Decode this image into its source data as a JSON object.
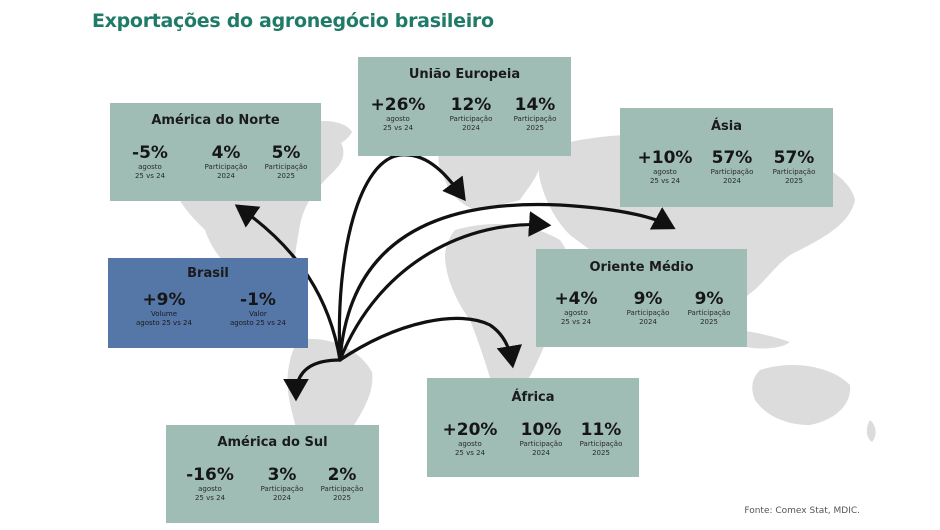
{
  "title": "Exportações do agronegócio brasileiro",
  "source": "Fonte: Comex Stat, MDIC.",
  "colors": {
    "title": "#1f7a68",
    "box": "#9fbdb5",
    "brasil_box": "#5477a8",
    "map": "#d9d9d9",
    "arrow": "#111111"
  },
  "regions": {
    "ue": {
      "name": "União Europeia",
      "stats": [
        {
          "value": "+26%",
          "cap1": "agosto",
          "cap2": "25 vs 24"
        },
        {
          "value": "12%",
          "cap1": "Participação",
          "cap2": "2024"
        },
        {
          "value": "14%",
          "cap1": "Participação",
          "cap2": "2025"
        }
      ]
    },
    "na": {
      "name": "América do Norte",
      "stats": [
        {
          "value": "-5%",
          "cap1": "agosto",
          "cap2": "25 vs 24"
        },
        {
          "value": "4%",
          "cap1": "Participação",
          "cap2": "2024"
        },
        {
          "value": "5%",
          "cap1": "Participação",
          "cap2": "2025"
        }
      ]
    },
    "asia": {
      "name": "Ásia",
      "stats": [
        {
          "value": "+10%",
          "cap1": "agosto",
          "cap2": "25 vs 24"
        },
        {
          "value": "57%",
          "cap1": "Participação",
          "cap2": "2024"
        },
        {
          "value": "57%",
          "cap1": "Participação",
          "cap2": "2025"
        }
      ]
    },
    "brasil": {
      "name": "Brasil",
      "stats": [
        {
          "value": "+9%",
          "cap1": "Volume",
          "cap2": "agosto 25 vs 24"
        },
        {
          "value": "-1%",
          "cap1": "Valor",
          "cap2": "agosto 25 vs 24"
        }
      ]
    },
    "om": {
      "name": "Oriente Médio",
      "stats": [
        {
          "value": "+4%",
          "cap1": "agosto",
          "cap2": "25 vs 24"
        },
        {
          "value": "9%",
          "cap1": "Participação",
          "cap2": "2024"
        },
        {
          "value": "9%",
          "cap1": "Participação",
          "cap2": "2025"
        }
      ]
    },
    "africa": {
      "name": "África",
      "stats": [
        {
          "value": "+20%",
          "cap1": "agosto",
          "cap2": "25 vs 24"
        },
        {
          "value": "10%",
          "cap1": "Participação",
          "cap2": "2024"
        },
        {
          "value": "11%",
          "cap1": "Participação",
          "cap2": "2025"
        }
      ]
    },
    "as": {
      "name": "América do Sul",
      "stats": [
        {
          "value": "-16%",
          "cap1": "agosto",
          "cap2": "25 vs 24"
        },
        {
          "value": "3%",
          "cap1": "Participação",
          "cap2": "2024"
        },
        {
          "value": "2%",
          "cap1": "Participação",
          "cap2": "2025"
        }
      ]
    }
  }
}
